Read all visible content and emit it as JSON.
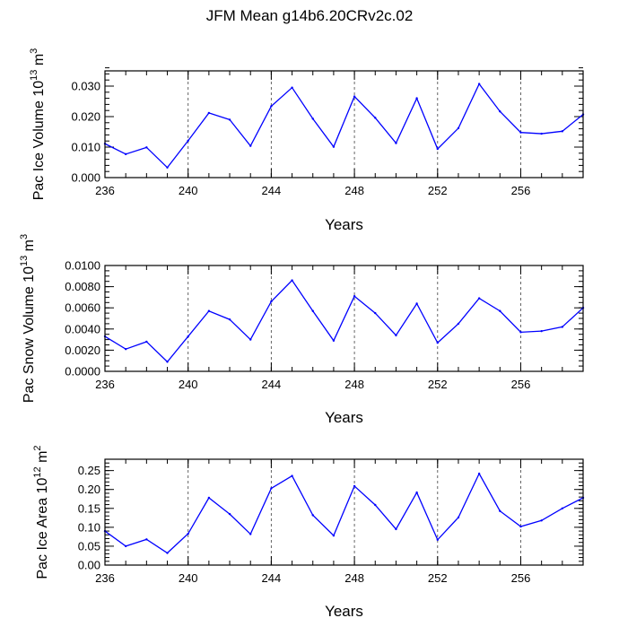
{
  "title": "JFM Mean g14b6.20CRv2c.02",
  "line_color": "#0000ff",
  "chart_data": [
    {
      "type": "line",
      "title": "",
      "xlabel": "Years",
      "ylabel_main": "Pac Ice Volume 10",
      "ylabel_exp": "13",
      "ylabel_unit": " m",
      "ylabel_unit_exp": "3",
      "xlim": [
        236,
        259
      ],
      "ylim": [
        0,
        0.035
      ],
      "x_ticks": [
        236,
        240,
        244,
        248,
        252,
        256
      ],
      "x_tick_labels": [
        "236",
        "240",
        "244",
        "248",
        "252",
        "256"
      ],
      "y_ticks": [
        0,
        0.01,
        0.02,
        0.03
      ],
      "y_tick_labels": [
        "0.000",
        "0.010",
        "0.020",
        "0.030"
      ],
      "y_minor_step": 0.002,
      "x": [
        236,
        237,
        238,
        239,
        240,
        241,
        242,
        243,
        244,
        245,
        246,
        247,
        248,
        249,
        250,
        251,
        252,
        253,
        254,
        255,
        256,
        257,
        258,
        259
      ],
      "series": [
        {
          "name": "Pac Ice Volume",
          "values": [
            0.0111,
            0.0077,
            0.0099,
            0.0033,
            0.0121,
            0.0212,
            0.019,
            0.0104,
            0.0234,
            0.0295,
            0.0193,
            0.0101,
            0.0266,
            0.0196,
            0.0113,
            0.026,
            0.0094,
            0.0162,
            0.0307,
            0.0217,
            0.0148,
            0.0144,
            0.0152,
            0.0207
          ]
        }
      ]
    },
    {
      "type": "line",
      "title": "",
      "xlabel": "Years",
      "ylabel_main": "Pac Snow Volume 10",
      "ylabel_exp": "13",
      "ylabel_unit": " m",
      "ylabel_unit_exp": "3",
      "xlim": [
        236,
        259
      ],
      "ylim": [
        0,
        0.01
      ],
      "x_ticks": [
        236,
        240,
        244,
        248,
        252,
        256
      ],
      "x_tick_labels": [
        "236",
        "240",
        "244",
        "248",
        "252",
        "256"
      ],
      "y_ticks": [
        0,
        0.002,
        0.004,
        0.006,
        0.008,
        0.01
      ],
      "y_tick_labels": [
        "0.0000",
        "0.0020",
        "0.0040",
        "0.0060",
        "0.0080",
        "0.0100"
      ],
      "y_minor_step": 0.0005,
      "x": [
        236,
        237,
        238,
        239,
        240,
        241,
        242,
        243,
        244,
        245,
        246,
        247,
        248,
        249,
        250,
        251,
        252,
        253,
        254,
        255,
        256,
        257,
        258,
        259
      ],
      "series": [
        {
          "name": "Pac Snow Volume",
          "values": [
            0.0033,
            0.0021,
            0.0028,
            0.0009,
            0.0033,
            0.0057,
            0.0049,
            0.003,
            0.0066,
            0.0086,
            0.0057,
            0.0029,
            0.0071,
            0.0055,
            0.0034,
            0.0064,
            0.0027,
            0.0045,
            0.0069,
            0.0057,
            0.0037,
            0.0038,
            0.0042,
            0.006
          ]
        }
      ]
    },
    {
      "type": "line",
      "title": "",
      "xlabel": "Years",
      "ylabel_main": "Pac Ice Area 10",
      "ylabel_exp": "12",
      "ylabel_unit": " m",
      "ylabel_unit_exp": "2",
      "xlim": [
        236,
        259
      ],
      "ylim": [
        0,
        0.28
      ],
      "x_ticks": [
        236,
        240,
        244,
        248,
        252,
        256
      ],
      "x_tick_labels": [
        "236",
        "240",
        "244",
        "248",
        "252",
        "256"
      ],
      "y_ticks": [
        0,
        0.05,
        0.1,
        0.15,
        0.2,
        0.25
      ],
      "y_tick_labels": [
        "0.00",
        "0.05",
        "0.10",
        "0.15",
        "0.20",
        "0.25"
      ],
      "y_minor_step": 0.01,
      "x": [
        236,
        237,
        238,
        239,
        240,
        241,
        242,
        243,
        244,
        245,
        246,
        247,
        248,
        249,
        250,
        251,
        252,
        253,
        254,
        255,
        256,
        257,
        258,
        259
      ],
      "series": [
        {
          "name": "Pac Ice Area",
          "values": [
            0.09,
            0.05,
            0.068,
            0.032,
            0.083,
            0.178,
            0.135,
            0.082,
            0.203,
            0.236,
            0.132,
            0.078,
            0.209,
            0.159,
            0.095,
            0.192,
            0.067,
            0.126,
            0.242,
            0.143,
            0.102,
            0.118,
            0.15,
            0.178
          ]
        }
      ]
    }
  ]
}
